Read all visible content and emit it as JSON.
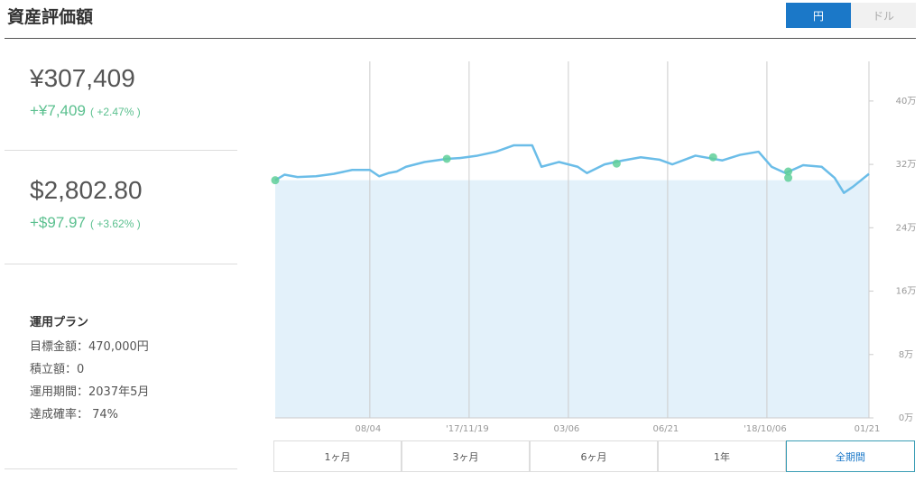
{
  "header": {
    "title": "資産評価額",
    "currency_buttons": [
      "円",
      "ドル"
    ]
  },
  "summary": [
    {
      "amount": "¥307,409",
      "change": "+¥7,409",
      "percent": "( +2.47% )"
    },
    {
      "amount": "$2,802.80",
      "change": "+$97.97",
      "percent": "( +3.62% )"
    }
  ],
  "plan": {
    "title": "運用プラン",
    "rows": [
      "目標金額：470,000円",
      "積立額：0",
      "運用期間：2037年5月",
      "達成確率： 74%"
    ]
  },
  "chart_data": {
    "type": "line",
    "x": [
      0,
      10,
      24,
      44,
      63,
      83,
      102,
      112,
      122,
      131,
      141,
      161,
      185,
      199,
      218,
      238,
      257,
      277,
      287,
      306,
      326,
      336,
      355,
      375,
      394,
      414,
      428,
      453,
      482,
      501,
      521,
      535,
      550,
      569,
      589,
      603,
      613,
      623,
      640
    ],
    "values": [
      30.0,
      30.7,
      30.4,
      30.5,
      30.8,
      31.3,
      31.3,
      30.5,
      30.9,
      31.1,
      31.7,
      32.3,
      32.7,
      32.8,
      33.1,
      33.6,
      34.4,
      34.4,
      31.7,
      32.3,
      31.7,
      30.9,
      32.0,
      32.5,
      32.9,
      32.6,
      32.0,
      33.1,
      32.5,
      33.2,
      33.6,
      31.7,
      30.9,
      31.9,
      31.7,
      30.3,
      28.4,
      29.2,
      30.8
    ],
    "color": "#6bbde8",
    "principal": {
      "x": [
        0,
        640
      ],
      "values": [
        30,
        30
      ],
      "color": "#e3f1fa"
    },
    "markers": {
      "x": [
        0,
        185,
        368,
        472,
        553,
        553
      ],
      "values": [
        30.0,
        32.7,
        32.1,
        32.9,
        31.1,
        30.3
      ],
      "color": "#5fcf99"
    },
    "xlim": [
      0,
      640
    ],
    "ylim": [
      0,
      45
    ],
    "xticks": [
      {
        "value": 102,
        "label": "08/04"
      },
      {
        "value": 209,
        "label": "'17/11/19"
      },
      {
        "value": 316,
        "label": "03/06"
      },
      {
        "value": 423,
        "label": "06/21"
      },
      {
        "value": 530,
        "label": "'18/10/06"
      },
      {
        "value": 640,
        "label": "01/21"
      }
    ],
    "yticks": [
      {
        "value": 0,
        "label": "0万"
      },
      {
        "value": 8,
        "label": "8万"
      },
      {
        "value": 16,
        "label": "16万"
      },
      {
        "value": 24,
        "label": "24万"
      },
      {
        "value": 32,
        "label": "32万"
      },
      {
        "value": 40,
        "label": "40万"
      }
    ],
    "grid": true
  },
  "ranges": [
    "1ヶ月",
    "3ヶ月",
    "6ヶ月",
    "1年",
    "全期間"
  ]
}
